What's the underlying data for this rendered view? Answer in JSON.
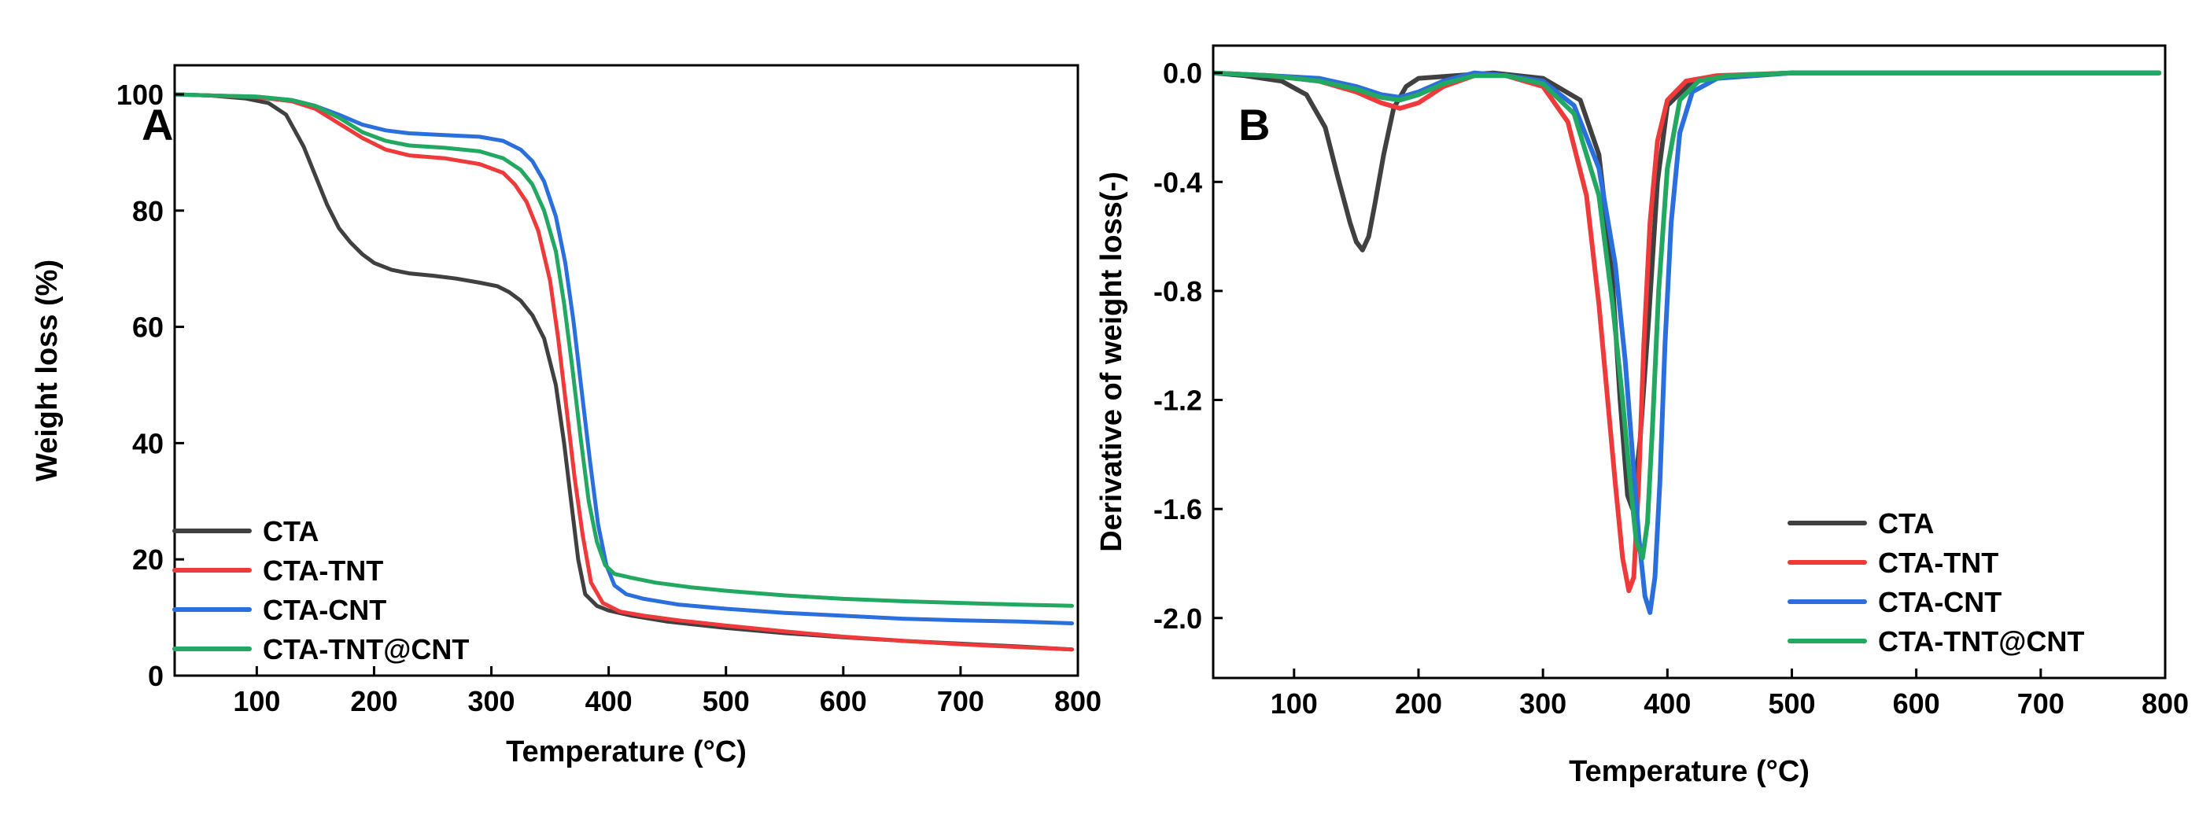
{
  "chart_data": [
    {
      "type": "line",
      "panel_label": "A",
      "title": "",
      "xlabel": "Temperature (°C)",
      "ylabel": "Weight loss (%)",
      "xlim": [
        30,
        800
      ],
      "ylim": [
        0,
        105
      ],
      "xticks": [
        100,
        200,
        300,
        400,
        500,
        600,
        700,
        800
      ],
      "yticks": [
        0,
        20,
        40,
        60,
        80,
        100
      ],
      "legend_position": "bottom-left",
      "series": [
        {
          "name": "CTA",
          "color": "#404040",
          "x": [
            30,
            60,
            90,
            110,
            125,
            140,
            150,
            160,
            170,
            180,
            190,
            200,
            215,
            230,
            250,
            270,
            290,
            305,
            315,
            325,
            335,
            345,
            355,
            362,
            368,
            374,
            380,
            390,
            400,
            420,
            450,
            500,
            550,
            600,
            650,
            700,
            750,
            795
          ],
          "y": [
            100,
            99.8,
            99.3,
            98.5,
            96.5,
            91,
            86,
            81,
            77,
            74.5,
            72.5,
            71,
            69.8,
            69.2,
            68.8,
            68.3,
            67.6,
            67,
            66,
            64.5,
            62,
            58,
            50,
            40,
            30,
            20,
            14,
            12,
            11.2,
            10.3,
            9.3,
            8.2,
            7.3,
            6.6,
            6,
            5.5,
            5,
            4.5
          ]
        },
        {
          "name": "CTA-TNT",
          "color": "#ee3a3a",
          "x": [
            30,
            60,
            100,
            130,
            150,
            170,
            190,
            210,
            230,
            260,
            290,
            310,
            320,
            330,
            340,
            350,
            357,
            364,
            371,
            378,
            385,
            395,
            410,
            430,
            460,
            500,
            550,
            600,
            650,
            700,
            750,
            795
          ],
          "y": [
            100,
            99.8,
            99.5,
            98.8,
            97.5,
            95,
            92.5,
            90.5,
            89.5,
            89,
            88,
            86.5,
            84.5,
            81.5,
            76.5,
            68,
            58,
            46,
            34,
            24,
            16,
            12.5,
            11,
            10.3,
            9.5,
            8.6,
            7.6,
            6.7,
            6,
            5.4,
            4.9,
            4.5
          ]
        },
        {
          "name": "CTA-CNT",
          "color": "#2a6fdb",
          "x": [
            30,
            60,
            100,
            130,
            150,
            170,
            190,
            210,
            230,
            260,
            290,
            310,
            325,
            335,
            345,
            355,
            363,
            370,
            377,
            384,
            391,
            398,
            405,
            415,
            430,
            460,
            500,
            550,
            600,
            650,
            700,
            750,
            795
          ],
          "y": [
            100,
            99.8,
            99.6,
            99,
            98,
            96.5,
            94.8,
            93.8,
            93.3,
            93,
            92.7,
            92,
            90.5,
            88.5,
            85,
            79,
            71,
            61,
            49,
            37,
            26,
            19,
            15.5,
            14,
            13.2,
            12.2,
            11.5,
            10.8,
            10.3,
            9.8,
            9.5,
            9.3,
            9
          ]
        },
        {
          "name": "CTA-TNT@CNT",
          "color": "#22a861",
          "x": [
            30,
            60,
            100,
            130,
            150,
            170,
            190,
            210,
            230,
            260,
            290,
            310,
            325,
            335,
            345,
            355,
            362,
            369,
            376,
            383,
            390,
            397,
            405,
            420,
            440,
            470,
            500,
            550,
            600,
            650,
            700,
            750,
            795
          ],
          "y": [
            100,
            99.8,
            99.6,
            99,
            98,
            96,
            93.5,
            92,
            91.2,
            90.8,
            90.2,
            89,
            87,
            84.5,
            80,
            73,
            64,
            53,
            41,
            30,
            23,
            19,
            17.5,
            16.8,
            16,
            15.2,
            14.6,
            13.8,
            13.2,
            12.8,
            12.5,
            12.2,
            12
          ]
        }
      ]
    },
    {
      "type": "line",
      "panel_label": "B",
      "title": "",
      "xlabel": "Temperature (°C)",
      "ylabel": "Derivative of weight loss(-)",
      "xlim": [
        35,
        800
      ],
      "ylim": [
        -2.22,
        0.1
      ],
      "xticks": [
        100,
        200,
        300,
        400,
        500,
        600,
        700,
        800
      ],
      "yticks": [
        0.0,
        -0.4,
        -0.8,
        -1.2,
        -1.6,
        -2.0
      ],
      "ytick_labels": [
        "0.0",
        "-0.4",
        "-0.8",
        "-1.2",
        "-1.6",
        "-2.0"
      ],
      "legend_position": "bottom-right",
      "series": [
        {
          "name": "CTA",
          "color": "#404040",
          "x": [
            35,
            60,
            90,
            110,
            125,
            135,
            145,
            150,
            155,
            160,
            165,
            172,
            180,
            190,
            200,
            230,
            260,
            300,
            330,
            345,
            355,
            362,
            368,
            372,
            378,
            385,
            392,
            400,
            420,
            450,
            500,
            600,
            700,
            795
          ],
          "y": [
            0,
            -0.01,
            -0.03,
            -0.08,
            -0.2,
            -0.38,
            -0.55,
            -0.62,
            -0.65,
            -0.6,
            -0.48,
            -0.3,
            -0.13,
            -0.05,
            -0.02,
            -0.01,
            0,
            -0.02,
            -0.1,
            -0.3,
            -0.7,
            -1.2,
            -1.55,
            -1.6,
            -1.35,
            -0.9,
            -0.4,
            -0.12,
            -0.03,
            -0.01,
            0,
            0,
            0,
            0
          ]
        },
        {
          "name": "CTA-TNT",
          "color": "#ee3a3a",
          "x": [
            35,
            80,
            120,
            150,
            170,
            185,
            200,
            220,
            245,
            270,
            300,
            320,
            335,
            345,
            352,
            358,
            364,
            369,
            373,
            377,
            381,
            386,
            392,
            400,
            415,
            440,
            500,
            600,
            700,
            795
          ],
          "y": [
            0,
            -0.01,
            -0.03,
            -0.07,
            -0.11,
            -0.13,
            -0.11,
            -0.05,
            -0.01,
            -0.01,
            -0.05,
            -0.18,
            -0.45,
            -0.85,
            -1.2,
            -1.5,
            -1.78,
            -1.9,
            -1.85,
            -1.5,
            -1.0,
            -0.55,
            -0.25,
            -0.1,
            -0.03,
            -0.01,
            0,
            0,
            0,
            0
          ]
        },
        {
          "name": "CTA-CNT",
          "color": "#2a6fdb",
          "x": [
            35,
            80,
            120,
            150,
            170,
            185,
            200,
            220,
            245,
            270,
            300,
            325,
            345,
            358,
            366,
            372,
            377,
            382,
            386,
            390,
            394,
            398,
            403,
            410,
            420,
            440,
            500,
            600,
            700,
            795
          ],
          "y": [
            0,
            -0.01,
            -0.02,
            -0.05,
            -0.08,
            -0.09,
            -0.07,
            -0.03,
            0,
            -0.01,
            -0.03,
            -0.12,
            -0.35,
            -0.7,
            -1.05,
            -1.4,
            -1.7,
            -1.92,
            -1.98,
            -1.85,
            -1.5,
            -1.0,
            -0.55,
            -0.22,
            -0.07,
            -0.02,
            0,
            0,
            0,
            0
          ]
        },
        {
          "name": "CTA-TNT@CNT",
          "color": "#22a861",
          "x": [
            35,
            80,
            120,
            150,
            170,
            185,
            200,
            220,
            245,
            270,
            300,
            325,
            345,
            356,
            364,
            370,
            375,
            380,
            384,
            388,
            393,
            400,
            410,
            425,
            450,
            500,
            600,
            700,
            795
          ],
          "y": [
            0,
            -0.01,
            -0.03,
            -0.06,
            -0.09,
            -0.1,
            -0.08,
            -0.04,
            -0.01,
            -0.01,
            -0.04,
            -0.15,
            -0.45,
            -0.85,
            -1.2,
            -1.5,
            -1.72,
            -1.78,
            -1.65,
            -1.3,
            -0.8,
            -0.35,
            -0.1,
            -0.03,
            -0.01,
            0,
            0,
            0,
            0
          ]
        }
      ]
    }
  ]
}
